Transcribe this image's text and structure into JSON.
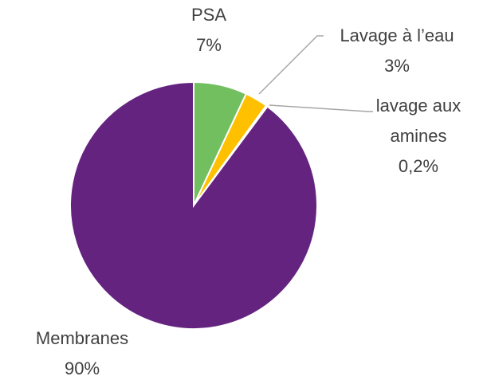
{
  "chart_data": {
    "type": "pie",
    "categories": [
      "PSA",
      "Lavage à l’eau",
      "lavage aux amines",
      "Membranes"
    ],
    "values": [
      7,
      3,
      0.2,
      90
    ],
    "value_labels": [
      "7%",
      "3%",
      "0,2%",
      "90%"
    ],
    "colors": [
      "#72bf5f",
      "#ffc000",
      "#ffffff",
      "#64237f"
    ]
  }
}
